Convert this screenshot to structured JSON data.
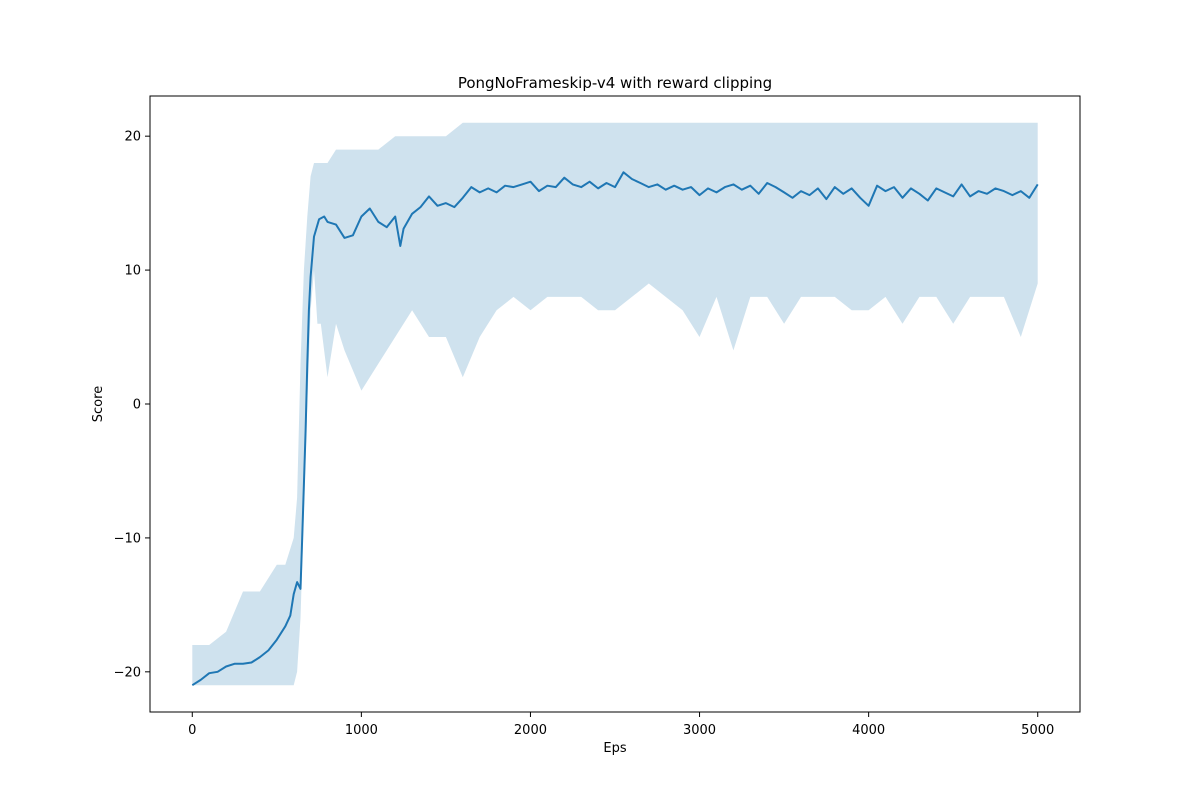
{
  "chart_data": {
    "type": "line",
    "title": "PongNoFrameskip-v4 with reward clipping",
    "xlabel": "Eps",
    "ylabel": "Score",
    "xlim": [
      -250,
      5250
    ],
    "ylim": [
      -23,
      23
    ],
    "xticks": [
      0,
      1000,
      2000,
      3000,
      4000,
      5000
    ],
    "yticks": [
      -20,
      -10,
      0,
      10,
      20
    ],
    "grid": false,
    "legend": "none",
    "colors": {
      "raw": "#cfe2ee",
      "smoothed": "#1f77b4"
    },
    "series": [
      {
        "role": "raw-episode-scores",
        "x": [
          0,
          100,
          200,
          300,
          400,
          500,
          550,
          600,
          620,
          640,
          660,
          680,
          700,
          720,
          740,
          760,
          800,
          850,
          900,
          1000,
          1100,
          1200,
          1300,
          1400,
          1500,
          1600,
          1700,
          1800,
          1900,
          2000,
          2100,
          2200,
          2300,
          2400,
          2500,
          2600,
          2700,
          2800,
          2900,
          3000,
          3100,
          3200,
          3300,
          3400,
          3500,
          3600,
          3700,
          3800,
          3900,
          4000,
          4100,
          4200,
          4300,
          4400,
          4500,
          4600,
          4700,
          4800,
          4900,
          5000
        ],
        "upper": [
          -18,
          -18,
          -17,
          -14,
          -14,
          -12,
          -12,
          -10,
          -7,
          3,
          10,
          14,
          17,
          18,
          18,
          18,
          18,
          19,
          19,
          19,
          19,
          20,
          20,
          20,
          20,
          21,
          21,
          21,
          21,
          21,
          21,
          21,
          21,
          21,
          21,
          21,
          21,
          21,
          21,
          21,
          21,
          21,
          21,
          21,
          21,
          21,
          21,
          21,
          21,
          21,
          21,
          21,
          21,
          21,
          21,
          21,
          21,
          21,
          21,
          21
        ],
        "lower": [
          -21,
          -21,
          -21,
          -21,
          -21,
          -21,
          -21,
          -21,
          -20,
          -16,
          -8,
          0,
          7,
          10,
          6,
          6,
          2,
          6,
          4,
          1,
          3,
          5,
          7,
          5,
          5,
          2,
          5,
          7,
          8,
          7,
          8,
          8,
          8,
          7,
          7,
          8,
          9,
          8,
          7,
          5,
          8,
          4,
          8,
          8,
          6,
          8,
          8,
          8,
          7,
          7,
          8,
          6,
          8,
          8,
          6,
          8,
          8,
          8,
          5,
          9
        ]
      },
      {
        "role": "smoothed-average",
        "x": [
          0,
          50,
          100,
          150,
          200,
          250,
          300,
          350,
          400,
          450,
          500,
          550,
          580,
          600,
          620,
          640,
          650,
          660,
          670,
          680,
          690,
          700,
          720,
          750,
          780,
          800,
          850,
          900,
          950,
          1000,
          1050,
          1100,
          1150,
          1200,
          1230,
          1250,
          1300,
          1350,
          1400,
          1450,
          1500,
          1550,
          1600,
          1650,
          1700,
          1750,
          1800,
          1850,
          1900,
          1950,
          2000,
          2050,
          2100,
          2150,
          2200,
          2250,
          2300,
          2350,
          2400,
          2450,
          2500,
          2550,
          2600,
          2650,
          2700,
          2750,
          2800,
          2850,
          2900,
          2950,
          3000,
          3050,
          3100,
          3150,
          3200,
          3250,
          3300,
          3350,
          3400,
          3450,
          3500,
          3550,
          3600,
          3650,
          3700,
          3750,
          3800,
          3850,
          3900,
          3950,
          4000,
          4050,
          4100,
          4150,
          4200,
          4250,
          4300,
          4350,
          4400,
          4450,
          4500,
          4550,
          4600,
          4650,
          4700,
          4750,
          4800,
          4850,
          4900,
          4950,
          5000
        ],
        "values": [
          -21,
          -20.6,
          -20.1,
          -20,
          -19.6,
          -19.4,
          -19.4,
          -19.3,
          -18.9,
          -18.4,
          -17.6,
          -16.6,
          -15.8,
          -14.2,
          -13.3,
          -13.8,
          -10,
          -6,
          -2,
          3,
          7,
          9.5,
          12.5,
          13.8,
          14,
          13.6,
          13.4,
          12.4,
          12.6,
          14,
          14.6,
          13.6,
          13.2,
          14,
          11.8,
          13.1,
          14.2,
          14.7,
          15.5,
          14.8,
          15,
          14.7,
          15.4,
          16.2,
          15.8,
          16.1,
          15.8,
          16.3,
          16.2,
          16.4,
          16.6,
          15.9,
          16.3,
          16.2,
          16.9,
          16.4,
          16.2,
          16.6,
          16.1,
          16.5,
          16.2,
          17.3,
          16.8,
          16.5,
          16.2,
          16.4,
          16,
          16.3,
          16,
          16.2,
          15.6,
          16.1,
          15.8,
          16.2,
          16.4,
          16,
          16.3,
          15.7,
          16.5,
          16.2,
          15.8,
          15.4,
          15.9,
          15.6,
          16.1,
          15.3,
          16.2,
          15.7,
          16.1,
          15.4,
          14.8,
          16.3,
          15.9,
          16.2,
          15.4,
          16.1,
          15.7,
          15.2,
          16.1,
          15.8,
          15.5,
          16.4,
          15.5,
          15.9,
          15.7,
          16.1,
          15.9,
          15.6,
          15.9,
          15.4,
          16.4
        ]
      }
    ]
  }
}
